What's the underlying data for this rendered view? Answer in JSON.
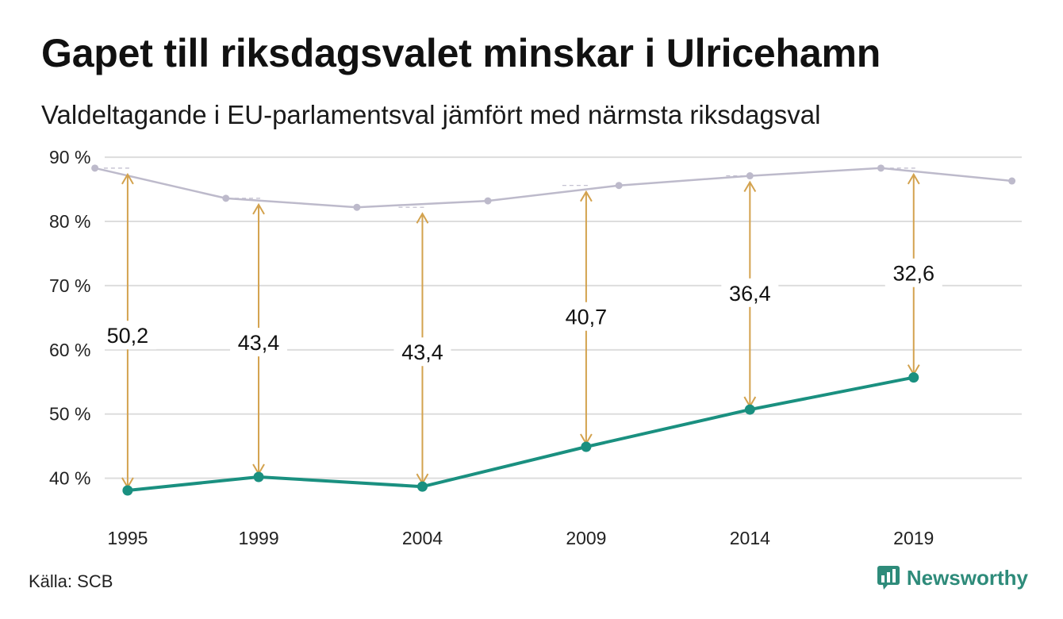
{
  "title": "Gapet till riksdagsvalet minskar i Ulricehamn",
  "subtitle": "Valdeltagande i EU-parlamentsval jämfört med närmsta riksdagsval",
  "source": "Källa: SCB",
  "brand": "Newsworthy",
  "colors": {
    "eu_line": "#1a9080",
    "riksdag_line": "#bdbacb",
    "arrow": "#d3a24e",
    "grid": "#dddddd",
    "brand": "#2e8b7a"
  },
  "chart_data": {
    "type": "line",
    "title": "Gapet till riksdagsvalet minskar i Ulricehamn",
    "subtitle": "Valdeltagande i EU-parlamentsval jämfört med närmsta riksdagsval",
    "xlabel": "",
    "ylabel": "",
    "xlim": [
      1994.3,
      2022.3
    ],
    "ylim": [
      36,
      91
    ],
    "y_ticks": [
      40,
      50,
      60,
      70,
      80,
      90
    ],
    "y_tick_labels": [
      "40 %",
      "50 %",
      "60 %",
      "70 %",
      "80 %",
      "90 %"
    ],
    "x_tick_labels": [
      "1995",
      "1999",
      "2004",
      "2009",
      "2014",
      "2019"
    ],
    "x_ticks": [
      1995,
      1999,
      2004,
      2009,
      2014,
      2019
    ],
    "grid": true,
    "series": [
      {
        "role": "riksdag",
        "x": [
          1994,
          1998,
          2002,
          2006,
          2010,
          2014,
          2018,
          2022
        ],
        "values": [
          88.3,
          83.6,
          82.2,
          83.2,
          85.6,
          87.1,
          88.3,
          86.3
        ]
      },
      {
        "role": "eu",
        "x": [
          1995,
          1999,
          2004,
          2009,
          2014,
          2019
        ],
        "values": [
          38.1,
          40.2,
          38.7,
          44.9,
          50.7,
          55.7
        ]
      }
    ],
    "gaps": [
      {
        "x": 1995,
        "top": 88.3,
        "bottom": 38.1,
        "label": "50,2",
        "label_y": 62.3
      },
      {
        "x": 1999,
        "top": 83.6,
        "bottom": 40.2,
        "label": "43,4",
        "label_y": 61.2
      },
      {
        "x": 2004,
        "top": 82.2,
        "bottom": 38.7,
        "label": "43,4",
        "label_y": 59.7
      },
      {
        "x": 2009,
        "top": 85.6,
        "bottom": 44.9,
        "label": "40,7",
        "label_y": 65.2
      },
      {
        "x": 2014,
        "top": 87.1,
        "bottom": 50.7,
        "label": "36,4",
        "label_y": 68.9
      },
      {
        "x": 2019,
        "top": 88.3,
        "bottom": 55.7,
        "label": "32,6",
        "label_y": 72.0
      }
    ]
  }
}
